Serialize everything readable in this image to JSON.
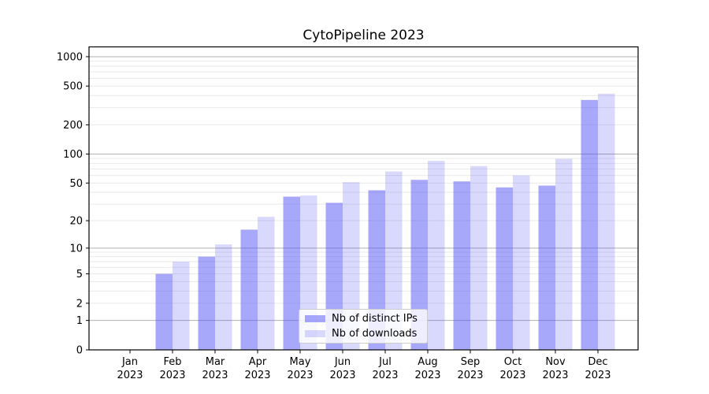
{
  "chart_data": {
    "type": "bar",
    "title": "CytoPipeline 2023",
    "xlabel": "",
    "ylabel": "",
    "y_scale": "log1p (log-like axis with 0 baseline)",
    "grid": true,
    "legend_position": "lower center",
    "categories": [
      "Jan",
      "Feb",
      "Mar",
      "Apr",
      "May",
      "Jun",
      "Jul",
      "Aug",
      "Sep",
      "Oct",
      "Nov",
      "Dec"
    ],
    "x_tick_year": "2023",
    "series": [
      {
        "name": "Nb of distinct IPs",
        "color": "rgba(81,81,245,0.50)",
        "approx_hex_on_white": "#a8a8f8",
        "values": [
          0,
          5,
          8,
          16,
          36,
          31,
          42,
          54,
          52,
          45,
          47,
          360
        ]
      },
      {
        "name": "Nb of downloads",
        "color": "rgba(81,81,245,0.22)",
        "approx_hex_on_white": "#d9d9f8",
        "values": [
          0,
          7,
          11,
          22,
          37,
          51,
          66,
          85,
          75,
          60,
          89,
          417
        ]
      }
    ],
    "y_ticks": [
      0,
      1,
      2,
      5,
      10,
      20,
      50,
      100,
      200,
      500,
      1000
    ],
    "y_major_gridlines": [
      1,
      10,
      100,
      1000
    ],
    "y_minor_gridlines": [
      2,
      3,
      4,
      5,
      6,
      7,
      8,
      9,
      20,
      30,
      40,
      50,
      60,
      70,
      80,
      90,
      200,
      300,
      400,
      500,
      600,
      700,
      800,
      900
    ],
    "ylim": [
      0,
      1250
    ]
  },
  "colors": {
    "bar_base": "#5151f5",
    "major_grid": "#b0b0b0",
    "minor_grid": "#e9e9e9",
    "axis": "#000000",
    "text": "#000000",
    "legend_bg": "rgba(255,255,255,0.8)",
    "legend_border": "#cccccc",
    "background": "#ffffff"
  }
}
